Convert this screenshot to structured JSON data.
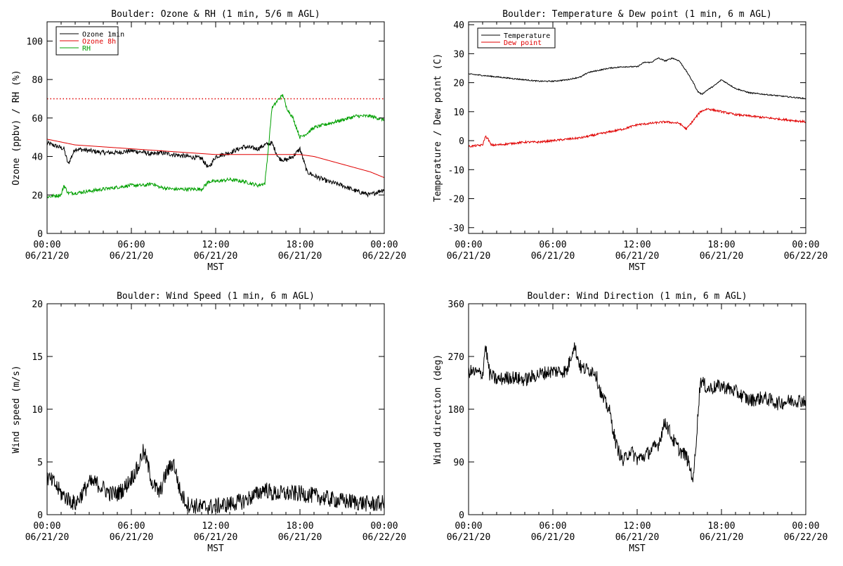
{
  "page": {
    "background": "#ffffff",
    "axis_color": "#000000"
  },
  "chart_data": [
    {
      "id": "ozone_rh",
      "type": "line",
      "title": "Boulder: Ozone & RH (1 min, 5/6 m AGL)",
      "ylabel": "Ozone (ppbv) / RH (%)",
      "xlabel": "MST",
      "xlim": [
        0,
        24
      ],
      "ylim": [
        0,
        110
      ],
      "yticks": [
        0,
        20,
        40,
        60,
        80,
        100
      ],
      "xtick_labels": [
        [
          "00:00",
          "06/21/20"
        ],
        [
          "06:00",
          "06/21/20"
        ],
        [
          "12:00",
          "06/21/20"
        ],
        [
          "18:00",
          "06/21/20"
        ],
        [
          "00:00",
          "06/22/20"
        ]
      ],
      "legend": [
        {
          "label": "Ozone 1min",
          "color": "#000000"
        },
        {
          "label": "Ozone 8h",
          "color": "#e00000"
        },
        {
          "label": "RH",
          "color": "#00a000"
        }
      ],
      "reference_line": {
        "y": 70,
        "color": "#e00000",
        "style": "dotted"
      },
      "series": [
        {
          "name": "Ozone 1min",
          "color": "#000000",
          "noise": 1.2,
          "x": [
            0,
            0.4,
            0.8,
            1.2,
            1.5,
            2,
            3,
            4,
            5,
            6,
            7,
            7.5,
            8,
            9,
            10,
            11,
            11.5,
            12,
            13,
            14,
            15,
            15.5,
            16,
            16.5,
            17,
            17.5,
            18,
            18.5,
            19,
            20,
            21,
            22,
            23,
            24
          ],
          "y": [
            47,
            46,
            45,
            44,
            36,
            44,
            43,
            42,
            42,
            43,
            42,
            41,
            42,
            41,
            40,
            39,
            34,
            40,
            42,
            45,
            44,
            46,
            47,
            39,
            38,
            40,
            44,
            32,
            30,
            27,
            25,
            22,
            20,
            23
          ]
        },
        {
          "name": "Ozone 8h",
          "color": "#e00000",
          "noise": 0,
          "x": [
            0,
            2,
            4,
            6,
            8,
            10,
            12,
            14,
            16,
            18,
            19,
            20,
            21,
            22,
            23,
            24
          ],
          "y": [
            49,
            46,
            45,
            44,
            43,
            42,
            41,
            41,
            41,
            41,
            40,
            38,
            36,
            34,
            32,
            29
          ]
        },
        {
          "name": "RH",
          "color": "#00a000",
          "noise": 0.9,
          "x": [
            0,
            1,
            1.2,
            1.5,
            2,
            3,
            4,
            5,
            6,
            7,
            7.5,
            8,
            9,
            10,
            11,
            11.5,
            12,
            13,
            14,
            15,
            15.5,
            15.8,
            16,
            16.5,
            16.8,
            17,
            17.5,
            18,
            18.5,
            19,
            20,
            21,
            22,
            23,
            24
          ],
          "y": [
            19,
            20,
            25,
            21,
            21,
            22,
            23,
            24,
            25,
            25,
            26,
            24,
            23,
            23,
            23,
            27,
            27,
            28,
            27,
            25,
            26,
            48,
            65,
            70,
            72,
            66,
            60,
            50,
            52,
            55,
            57,
            59,
            61,
            61,
            59
          ]
        }
      ]
    },
    {
      "id": "temp_dew",
      "type": "line",
      "title": "Boulder: Temperature & Dew point (1 min, 6 m AGL)",
      "ylabel": "Temperature / Dew point (C)",
      "xlabel": "MST",
      "xlim": [
        0,
        24
      ],
      "ylim": [
        -32,
        41
      ],
      "yticks": [
        -30,
        -20,
        -10,
        0,
        10,
        20,
        30,
        40
      ],
      "xtick_labels": [
        [
          "00:00",
          "06/21/20"
        ],
        [
          "06:00",
          "06/21/20"
        ],
        [
          "12:00",
          "06/21/20"
        ],
        [
          "18:00",
          "06/21/20"
        ],
        [
          "00:00",
          "06/22/20"
        ]
      ],
      "legend": [
        {
          "label": "Temperature",
          "color": "#000000"
        },
        {
          "label": "Dew point",
          "color": "#e00000"
        }
      ],
      "series": [
        {
          "name": "Temperature",
          "color": "#000000",
          "noise": 0.2,
          "x": [
            0,
            1,
            2,
            3,
            4,
            5,
            6,
            7,
            8,
            8.5,
            9,
            10,
            11,
            12,
            12.5,
            13,
            13.5,
            14,
            14.5,
            15,
            15.5,
            16,
            16.3,
            16.6,
            17,
            17.5,
            18,
            19,
            20,
            21,
            22,
            23,
            24
          ],
          "y": [
            23,
            22.5,
            22,
            21.5,
            21,
            20.5,
            20.5,
            21,
            22,
            23.5,
            24,
            25,
            25.5,
            25.5,
            27,
            27,
            28.5,
            27.5,
            28.5,
            27.5,
            24,
            20,
            17,
            16,
            17.5,
            19,
            21,
            18,
            16.5,
            16,
            15.5,
            15,
            14.5
          ]
        },
        {
          "name": "Dew point",
          "color": "#e00000",
          "noise": 0.35,
          "x": [
            0,
            1,
            1.2,
            1.4,
            1.6,
            2,
            3,
            4,
            5,
            6,
            7,
            8,
            9,
            10,
            11,
            12,
            13,
            14,
            15,
            15.5,
            16,
            16.5,
            17,
            17.5,
            18,
            19,
            20,
            21,
            22,
            23,
            24
          ],
          "y": [
            -2,
            -1.5,
            1.5,
            0.5,
            -1.5,
            -1.5,
            -1,
            -0.5,
            -0.5,
            0,
            0.5,
            1,
            2,
            3,
            4,
            5.5,
            6,
            6.5,
            6,
            4,
            7,
            10,
            11,
            10.5,
            10,
            9,
            8.5,
            8,
            7.5,
            7,
            6.5
          ]
        }
      ]
    },
    {
      "id": "wind_speed",
      "type": "line",
      "title": "Boulder: Wind Speed (1 min, 6 m AGL)",
      "ylabel": "Wind speed (m/s)",
      "xlabel": "MST",
      "xlim": [
        0,
        24
      ],
      "ylim": [
        0,
        20
      ],
      "yticks": [
        0,
        5,
        10,
        15,
        20
      ],
      "xtick_labels": [
        [
          "00:00",
          "06/21/20"
        ],
        [
          "06:00",
          "06/21/20"
        ],
        [
          "12:00",
          "06/21/20"
        ],
        [
          "18:00",
          "06/21/20"
        ],
        [
          "00:00",
          "06/22/20"
        ]
      ],
      "legend": [],
      "series": [
        {
          "name": "Wind speed",
          "color": "#000000",
          "noise": 0.8,
          "clip_min": 0,
          "x": [
            0,
            0.5,
            1,
            1.5,
            2,
            2.5,
            3,
            3.5,
            4,
            4.5,
            5,
            5.5,
            6,
            6.5,
            6.8,
            7,
            7.5,
            8,
            8.5,
            9,
            9.5,
            10,
            11,
            12,
            13,
            14,
            15,
            15.5,
            16,
            17,
            18,
            19,
            20,
            21,
            22,
            23,
            24
          ],
          "y": [
            3.5,
            3,
            2,
            1.5,
            1,
            2,
            3,
            3,
            2.5,
            2,
            2,
            2.5,
            3.5,
            4.5,
            6,
            5.5,
            3,
            2,
            4,
            5,
            2,
            1,
            0.7,
            0.8,
            1,
            1.3,
            2,
            2.5,
            2,
            2,
            2,
            1.8,
            1.5,
            1.3,
            1.2,
            1,
            1.1
          ]
        }
      ]
    },
    {
      "id": "wind_dir",
      "type": "line",
      "title": "Boulder: Wind Direction (1 min, 6 m AGL)",
      "ylabel": "Wind direction (deg)",
      "xlabel": "MST",
      "xlim": [
        0,
        24
      ],
      "ylim": [
        0,
        360
      ],
      "yticks": [
        0,
        90,
        180,
        270,
        360
      ],
      "xtick_labels": [
        [
          "00:00",
          "06/21/20"
        ],
        [
          "06:00",
          "06/21/20"
        ],
        [
          "12:00",
          "06/21/20"
        ],
        [
          "18:00",
          "06/21/20"
        ],
        [
          "00:00",
          "06/22/20"
        ]
      ],
      "legend": [],
      "series": [
        {
          "name": "Wind direction",
          "color": "#000000",
          "noise": 12,
          "clip_min": 0,
          "clip_max": 360,
          "x": [
            0,
            1,
            1.2,
            1.5,
            2,
            3,
            4,
            5,
            6,
            7,
            7.5,
            8,
            9,
            9.5,
            10,
            10.5,
            11,
            11.5,
            12,
            12.5,
            13,
            13.5,
            14,
            14.5,
            15,
            15.5,
            16,
            16.5,
            17,
            18,
            19,
            20,
            21,
            22,
            23,
            24
          ],
          "y": [
            245,
            240,
            290,
            240,
            230,
            235,
            230,
            240,
            245,
            245,
            290,
            250,
            245,
            200,
            180,
            120,
            90,
            110,
            95,
            100,
            110,
            120,
            160,
            130,
            110,
            100,
            60,
            230,
            215,
            220,
            210,
            195,
            200,
            190,
            195,
            195
          ]
        }
      ]
    }
  ]
}
